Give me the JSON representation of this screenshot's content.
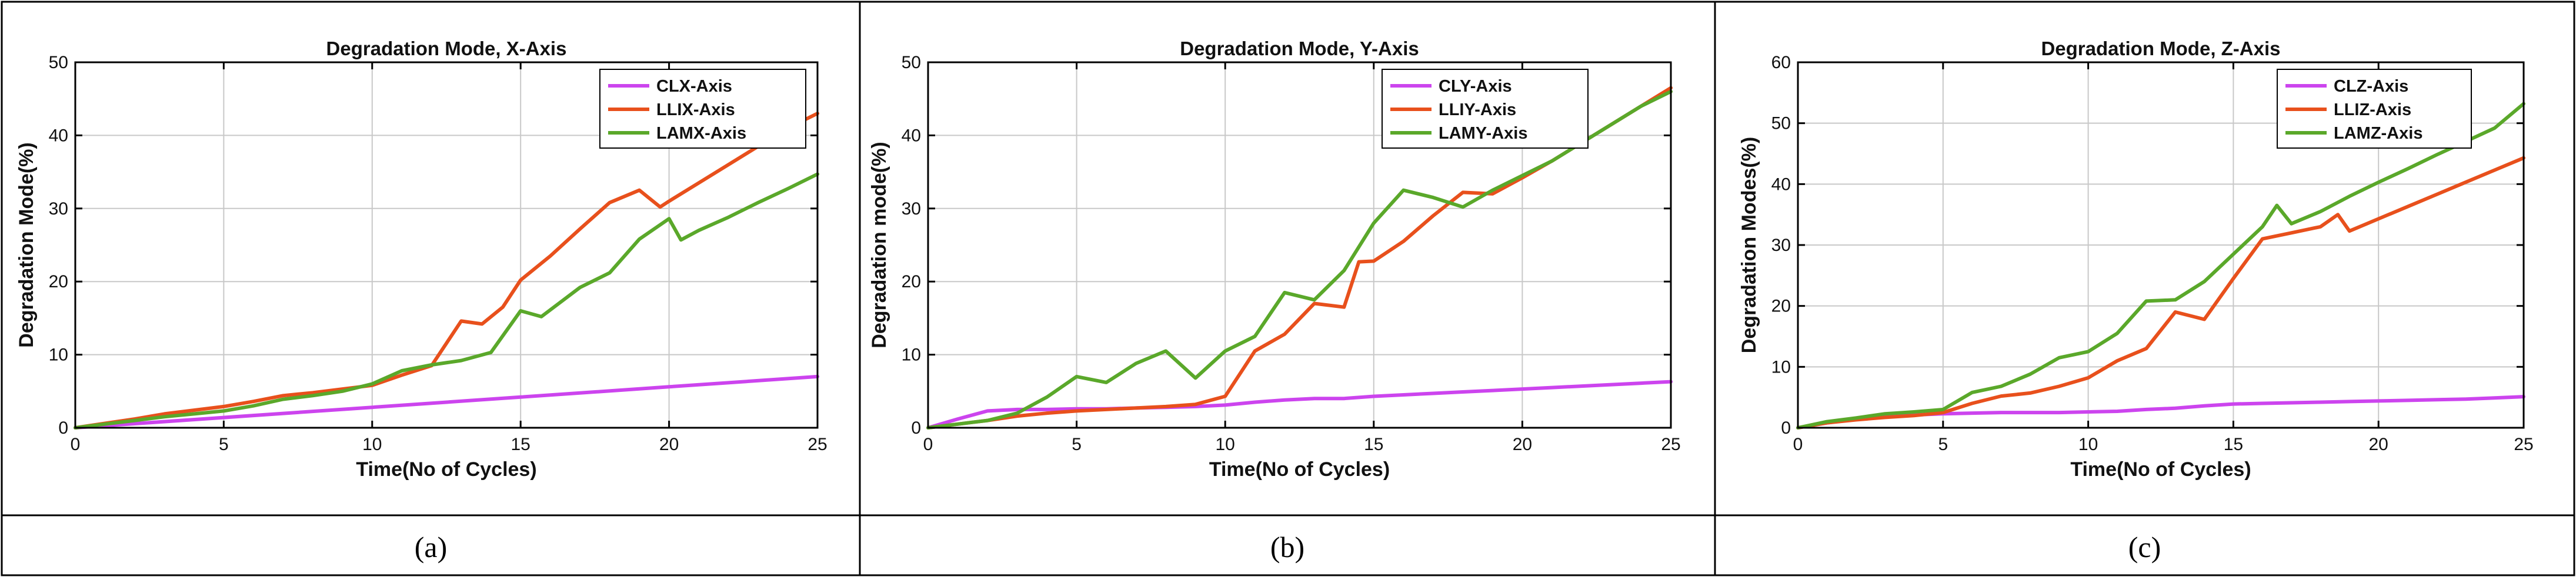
{
  "chart_data": [
    {
      "type": "line",
      "title": "Degradation Mode, X-Axis",
      "xlabel": "Time(No of Cycles)",
      "ylabel": "Degradation Mode(%)",
      "xlim": [
        0,
        25
      ],
      "ylim": [
        0,
        50
      ],
      "xticks": [
        0,
        5,
        10,
        15,
        20,
        25
      ],
      "yticks": [
        0,
        10,
        20,
        30,
        40,
        50
      ],
      "caption": "(a)",
      "legend_position": "top-right",
      "series": [
        {
          "name": "CLX-Axis",
          "color": "#cc44ee",
          "x": [
            0,
            5,
            10,
            15,
            20,
            25
          ],
          "y": [
            0,
            1.4,
            2.8,
            4.2,
            5.6,
            7.0
          ]
        },
        {
          "name": "LLIX-Axis",
          "color": "#e8501c",
          "x": [
            0,
            1,
            2,
            3,
            4,
            5,
            6,
            7,
            8,
            9,
            10,
            11,
            12,
            13,
            13.7,
            14.4,
            15,
            16,
            17,
            18,
            19,
            19.7,
            20,
            21,
            22,
            23,
            24,
            25
          ],
          "y": [
            0,
            0.6,
            1.2,
            1.9,
            2.4,
            2.9,
            3.6,
            4.4,
            4.8,
            5.3,
            5.8,
            7.2,
            8.5,
            14.6,
            14.2,
            16.5,
            20.2,
            23.5,
            27.2,
            30.8,
            32.5,
            30.2,
            31.0,
            33.5,
            36.0,
            38.5,
            41.0,
            43.0
          ]
        },
        {
          "name": "LAMX-Axis",
          "color": "#5aa82a",
          "x": [
            0,
            1,
            2,
            3,
            4,
            5,
            6,
            7,
            8,
            9,
            10,
            11,
            12,
            13,
            14,
            15,
            15.7,
            17,
            18,
            19,
            20,
            20.4,
            21,
            22,
            23,
            24,
            25
          ],
          "y": [
            0,
            0.5,
            1.0,
            1.5,
            1.9,
            2.3,
            3.0,
            3.9,
            4.4,
            5.0,
            6.0,
            7.8,
            8.6,
            9.2,
            10.3,
            16.0,
            15.2,
            19.2,
            21.2,
            25.8,
            28.6,
            25.7,
            27.0,
            28.8,
            30.8,
            32.7,
            34.7
          ]
        }
      ]
    },
    {
      "type": "line",
      "title": "Degradation Mode, Y-Axis",
      "xlabel": "Time(No of Cycles)",
      "ylabel": "Degradation mode(%)",
      "xlim": [
        0,
        25
      ],
      "ylim": [
        0,
        50
      ],
      "xticks": [
        0,
        5,
        10,
        15,
        20,
        25
      ],
      "yticks": [
        0,
        10,
        20,
        30,
        40,
        50
      ],
      "caption": "(b)",
      "legend_position": "top-right",
      "series": [
        {
          "name": "CLY-Axis",
          "color": "#cc44ee",
          "x": [
            0,
            1,
            2,
            3,
            4,
            5,
            6,
            7,
            8,
            9,
            10,
            11,
            12,
            13,
            14,
            15,
            16,
            17,
            18,
            19,
            20,
            21,
            22,
            23,
            24,
            25
          ],
          "y": [
            0,
            1.2,
            2.3,
            2.5,
            2.5,
            2.6,
            2.6,
            2.7,
            2.8,
            2.9,
            3.1,
            3.5,
            3.8,
            4.0,
            4.0,
            4.3,
            4.5,
            4.7,
            4.9,
            5.1,
            5.3,
            5.5,
            5.7,
            5.9,
            6.1,
            6.3
          ]
        },
        {
          "name": "LLIY-Axis",
          "color": "#e8501c",
          "x": [
            0,
            1,
            2,
            3,
            4,
            5,
            6,
            7,
            8,
            9,
            10,
            11,
            12,
            13,
            14,
            14.5,
            15,
            16,
            17,
            18,
            19,
            20,
            21,
            22,
            23,
            24,
            25
          ],
          "y": [
            0,
            0.5,
            1.0,
            1.6,
            2.0,
            2.3,
            2.5,
            2.7,
            2.9,
            3.2,
            4.3,
            10.5,
            12.8,
            17.0,
            16.5,
            22.7,
            22.8,
            25.5,
            29.0,
            32.2,
            32.0,
            34.2,
            36.5,
            39.0,
            41.5,
            44.0,
            46.5
          ]
        },
        {
          "name": "LAMY-Axis",
          "color": "#5aa82a",
          "x": [
            0,
            1,
            2,
            3,
            4,
            5,
            6,
            7,
            8,
            9,
            10,
            11,
            12,
            13,
            14,
            15,
            16,
            17,
            18,
            19,
            20,
            21,
            22,
            23,
            24,
            25
          ],
          "y": [
            0,
            0.5,
            1.0,
            2.0,
            4.2,
            7.0,
            6.2,
            8.8,
            10.5,
            6.8,
            10.5,
            12.5,
            18.5,
            17.5,
            21.5,
            28.0,
            32.5,
            31.5,
            30.2,
            32.5,
            34.5,
            36.5,
            39.0,
            41.5,
            44.0,
            46.0
          ]
        }
      ]
    },
    {
      "type": "line",
      "title": "Degradation Mode, Z-Axis",
      "xlabel": "Time(No of Cycles)",
      "ylabel": "Degradation Modes(%)",
      "xlim": [
        0,
        25
      ],
      "ylim": [
        0,
        60
      ],
      "xticks": [
        0,
        5,
        10,
        15,
        20,
        25
      ],
      "yticks": [
        0,
        10,
        20,
        30,
        40,
        50,
        60
      ],
      "caption": "(c)",
      "legend_position": "top-left",
      "series": [
        {
          "name": "CLZ-Axis",
          "color": "#cc44ee",
          "x": [
            0,
            1,
            2,
            3,
            4,
            5,
            6,
            7,
            8,
            9,
            10,
            11,
            12,
            13,
            14,
            15,
            16,
            17,
            18,
            19,
            20,
            21,
            22,
            23,
            24,
            25
          ],
          "y": [
            0,
            0.8,
            1.4,
            1.8,
            2.1,
            2.3,
            2.4,
            2.5,
            2.5,
            2.5,
            2.6,
            2.7,
            3.0,
            3.2,
            3.6,
            3.9,
            4.0,
            4.1,
            4.2,
            4.3,
            4.4,
            4.5,
            4.6,
            4.7,
            4.9,
            5.1
          ]
        },
        {
          "name": "LLIZ-Axis",
          "color": "#e8501c",
          "x": [
            0,
            1,
            2,
            3,
            4,
            5,
            6,
            7,
            8,
            9,
            10,
            11,
            12,
            13,
            14,
            15,
            16,
            17,
            18,
            18.6,
            19,
            20,
            21,
            22,
            23,
            24,
            25
          ],
          "y": [
            0,
            0.8,
            1.3,
            1.7,
            2.0,
            2.5,
            4.0,
            5.2,
            5.7,
            6.8,
            8.2,
            11.0,
            13.0,
            19.0,
            17.8,
            24.5,
            31.0,
            32.0,
            33.0,
            35.0,
            32.3,
            34.3,
            36.3,
            38.3,
            40.3,
            42.3,
            44.3
          ]
        },
        {
          "name": "LAMZ-Axis",
          "color": "#5aa82a",
          "x": [
            0,
            1,
            2,
            3,
            4,
            5,
            6,
            7,
            8,
            9,
            10,
            11,
            12,
            13,
            14,
            15,
            16,
            16.5,
            17,
            18,
            19,
            20,
            21,
            22,
            23,
            24,
            25
          ],
          "y": [
            0,
            1.0,
            1.6,
            2.3,
            2.6,
            3.0,
            5.8,
            6.8,
            8.8,
            11.5,
            12.5,
            15.5,
            20.8,
            21.0,
            24.0,
            28.5,
            33.0,
            36.5,
            33.5,
            35.5,
            38.0,
            40.3,
            42.5,
            44.8,
            47.0,
            49.2,
            53.2
          ]
        }
      ]
    }
  ]
}
